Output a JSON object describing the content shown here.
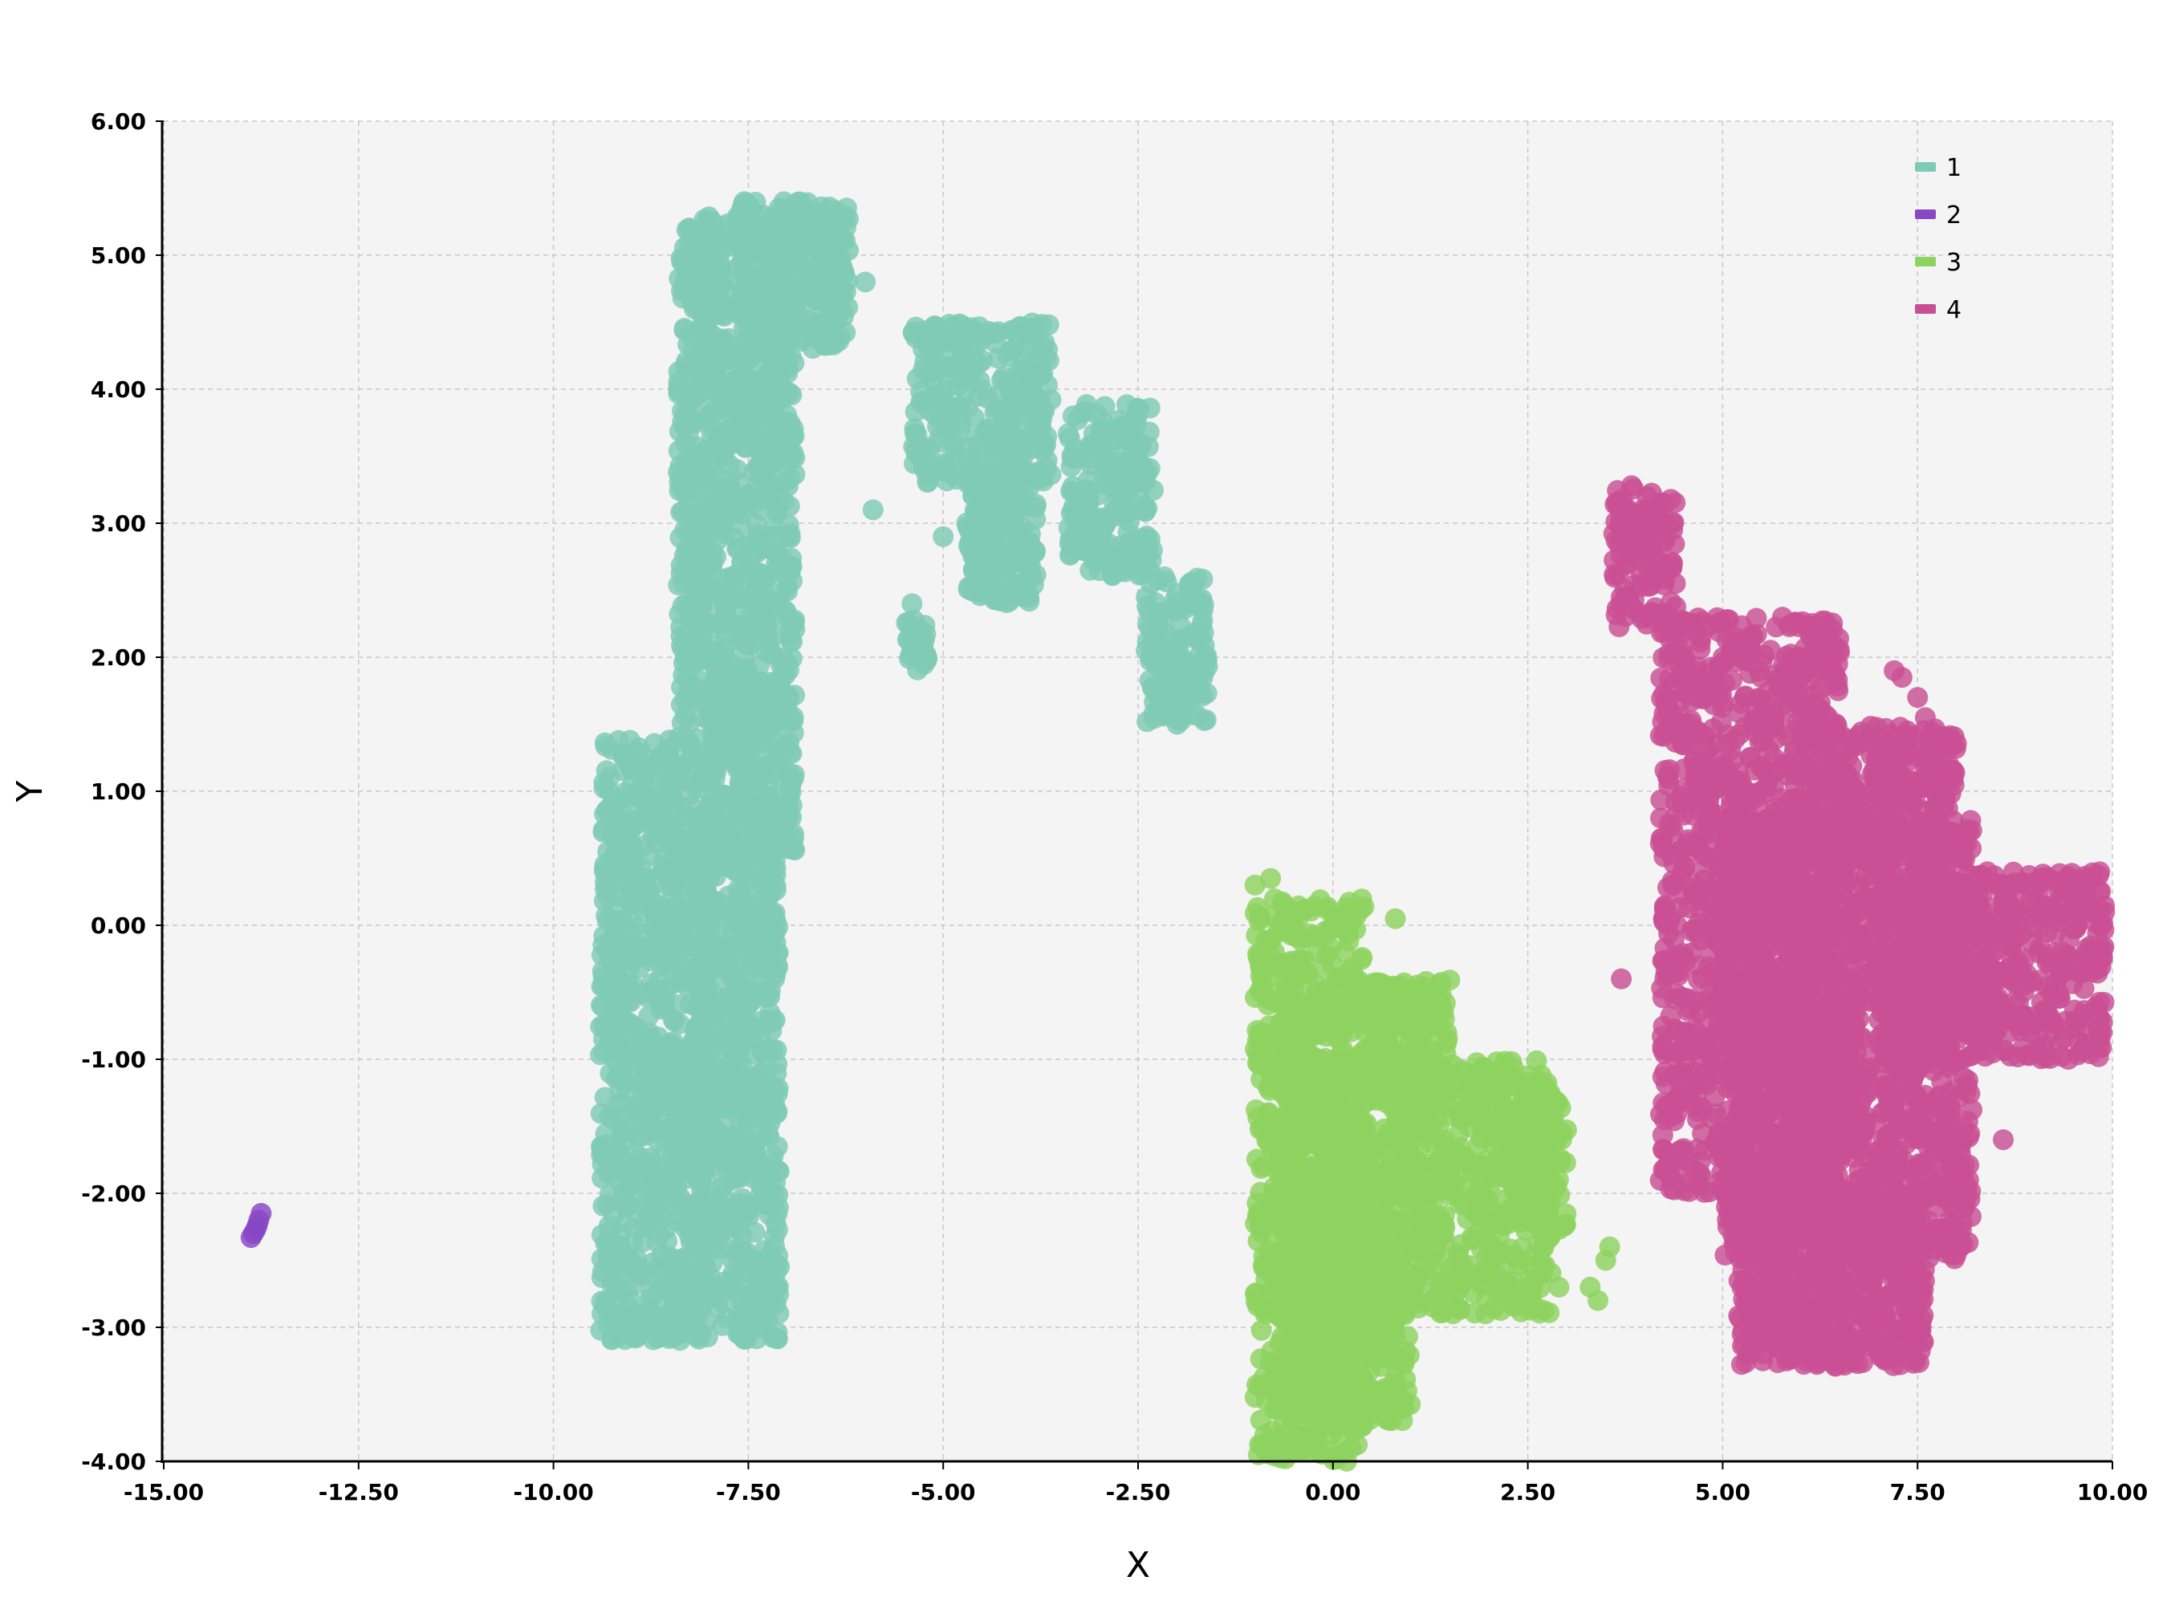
{
  "chart_data": {
    "type": "scatter",
    "title": "",
    "xlabel": "X",
    "ylabel": "Y",
    "xlim": [
      -15,
      10
    ],
    "ylim": [
      -4,
      6
    ],
    "x_ticks": [
      "-15.00",
      "-12.50",
      "-10.00",
      "-7.50",
      "-5.00",
      "-2.50",
      "0.00",
      "2.50",
      "5.00",
      "7.50",
      "10.00"
    ],
    "y_ticks": [
      "6.00",
      "5.00",
      "4.00",
      "3.00",
      "2.00",
      "1.00",
      "0.00",
      "-1.00",
      "-2.00",
      "-3.00",
      "-4.00"
    ],
    "grid": true,
    "legend_position": "top-right",
    "plot_background": "#f4f4f4",
    "series": [
      {
        "name": "1",
        "color": "#7fcab5",
        "regions": [
          {
            "x_range": [
              -9.4,
              -8.0
            ],
            "y_range": [
              -3.1,
              1.4
            ],
            "count": 900
          },
          {
            "x_range": [
              -8.2,
              -7.1
            ],
            "y_range": [
              -3.1,
              0.6
            ],
            "count": 600
          },
          {
            "x_range": [
              -8.4,
              -6.9
            ],
            "y_range": [
              1.5,
              5.3
            ],
            "count": 800
          },
          {
            "x_range": [
              -7.6,
              -6.2
            ],
            "y_range": [
              4.3,
              5.4
            ],
            "count": 300
          },
          {
            "x_range": [
              -8.0,
              -6.9
            ],
            "y_range": [
              0.5,
              1.8
            ],
            "count": 250
          },
          {
            "x_range": [
              -5.4,
              -3.6
            ],
            "y_range": [
              3.3,
              4.5
            ],
            "count": 260
          },
          {
            "x_range": [
              -4.7,
              -3.8
            ],
            "y_range": [
              2.4,
              3.4
            ],
            "count": 180
          },
          {
            "x_range": [
              -3.4,
              -2.3
            ],
            "y_range": [
              2.6,
              3.9
            ],
            "count": 200
          },
          {
            "x_range": [
              -2.4,
              -1.6
            ],
            "y_range": [
              1.5,
              2.6
            ],
            "count": 140
          },
          {
            "x_range": [
              -5.5,
              -5.2
            ],
            "y_range": [
              1.9,
              2.3
            ],
            "count": 30
          }
        ],
        "points": [
          {
            "x": -5.0,
            "y": 2.9
          },
          {
            "x": -5.4,
            "y": 2.4
          },
          {
            "x": -6.0,
            "y": 4.8
          },
          {
            "x": -5.9,
            "y": 3.1
          },
          {
            "x": -8.4,
            "y": 1.4
          },
          {
            "x": -2.0,
            "y": 1.5
          }
        ]
      },
      {
        "name": "2",
        "color": "#8847c4",
        "points": [
          {
            "x": -13.75,
            "y": -2.15
          },
          {
            "x": -13.78,
            "y": -2.2
          },
          {
            "x": -13.8,
            "y": -2.24
          },
          {
            "x": -13.82,
            "y": -2.27
          },
          {
            "x": -13.85,
            "y": -2.3
          },
          {
            "x": -13.88,
            "y": -2.33
          }
        ]
      },
      {
        "name": "3",
        "color": "#8dd35f",
        "regions": [
          {
            "x_range": [
              -1.0,
              0.4
            ],
            "y_range": [
              -4.0,
              0.2
            ],
            "count": 700
          },
          {
            "x_range": [
              -0.7,
              2.8
            ],
            "y_range": [
              -2.9,
              -1.0
            ],
            "count": 900
          },
          {
            "x_range": [
              0.4,
              1.5
            ],
            "y_range": [
              -1.2,
              -0.4
            ],
            "count": 150
          },
          {
            "x_range": [
              -0.6,
              1.0
            ],
            "y_range": [
              -3.7,
              -2.6
            ],
            "count": 300
          },
          {
            "x_range": [
              2.4,
              3.0
            ],
            "y_range": [
              -2.3,
              -1.2
            ],
            "count": 100
          }
        ],
        "points": [
          {
            "x": 3.3,
            "y": -2.7
          },
          {
            "x": 3.4,
            "y": -2.8
          },
          {
            "x": 3.5,
            "y": -2.5
          },
          {
            "x": 3.55,
            "y": -2.4
          },
          {
            "x": 2.9,
            "y": -2.7
          },
          {
            "x": 0.8,
            "y": 0.05
          },
          {
            "x": -1.0,
            "y": 0.3
          },
          {
            "x": -0.8,
            "y": 0.35
          }
        ]
      },
      {
        "name": "4",
        "color": "#c94f94",
        "regions": [
          {
            "x_range": [
              4.2,
              6.5
            ],
            "y_range": [
              -2.0,
              2.3
            ],
            "count": 1200
          },
          {
            "x_range": [
              5.0,
              8.2
            ],
            "y_range": [
              -2.5,
              0.8
            ],
            "count": 1500
          },
          {
            "x_range": [
              5.2,
              7.6
            ],
            "y_range": [
              -3.3,
              -2.0
            ],
            "count": 600
          },
          {
            "x_range": [
              7.0,
              9.9
            ],
            "y_range": [
              -1.0,
              0.4
            ],
            "count": 600
          },
          {
            "x_range": [
              6.0,
              8.0
            ],
            "y_range": [
              0.5,
              1.5
            ],
            "count": 300
          },
          {
            "x_range": [
              3.6,
              4.4
            ],
            "y_range": [
              2.2,
              3.3
            ],
            "count": 120
          }
        ],
        "points": [
          {
            "x": 7.2,
            "y": 1.9
          },
          {
            "x": 7.5,
            "y": 1.7
          },
          {
            "x": 7.3,
            "y": 1.85
          },
          {
            "x": 7.6,
            "y": 1.55
          },
          {
            "x": 3.7,
            "y": -0.4
          },
          {
            "x": 4.4,
            "y": -1.1
          },
          {
            "x": 8.6,
            "y": -1.6
          },
          {
            "x": 9.9,
            "y": 0.1
          },
          {
            "x": 7.9,
            "y": 1.2
          }
        ]
      }
    ]
  }
}
